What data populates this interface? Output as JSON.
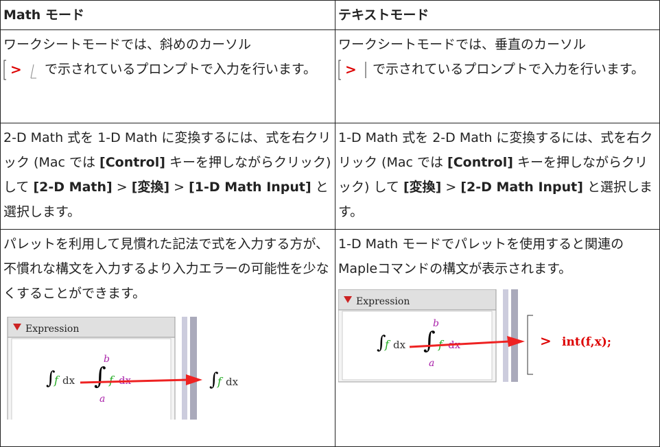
{
  "table": {
    "headers": [
      "Math モード",
      "テキストモード"
    ],
    "rows": [
      [
        [
          "ワークシートモードでは、斜めのカーソル",
          "で示されているプロンプトで入力を行います。"
        ],
        [
          "ワークシートモードでは、垂直のカーソル",
          "で示されているプロンプトで入力を行います。"
        ]
      ],
      [
        [
          "2-D Math 式を 1-D Math に変換するには、式を右クリック (Mac では ",
          "[Control]",
          " キーを押しながらクリック) して ",
          "[2-D Math]",
          " > ",
          "[変換]",
          " > ",
          "[1-D Math Input]",
          " と選択します。"
        ],
        [
          "1-D Math 式を 2-D Math に変換するには、式を右クリック (Mac では ",
          "[Control]",
          " キーを押しながらクリック) して ",
          "[変換]",
          " > ",
          "[2-D Math Input]",
          " と選択します。"
        ]
      ],
      [
        [
          "パレットを利用して見慣れた記法で式を入力する方が、不慣れな構文を入力するより入力エラーの可能性を少なくすることができます。"
        ],
        [
          "1-D Math モードでパレットを使用すると関連のMapleコマンドの構文が表示されます。"
        ]
      ]
    ]
  },
  "figures": {
    "prompt": ">",
    "palette_title": "Expression",
    "integral": "∫",
    "integrand": "f",
    "differential": "dx",
    "upper": "b",
    "lower": "a",
    "maple_command": "int(f,x);"
  }
}
